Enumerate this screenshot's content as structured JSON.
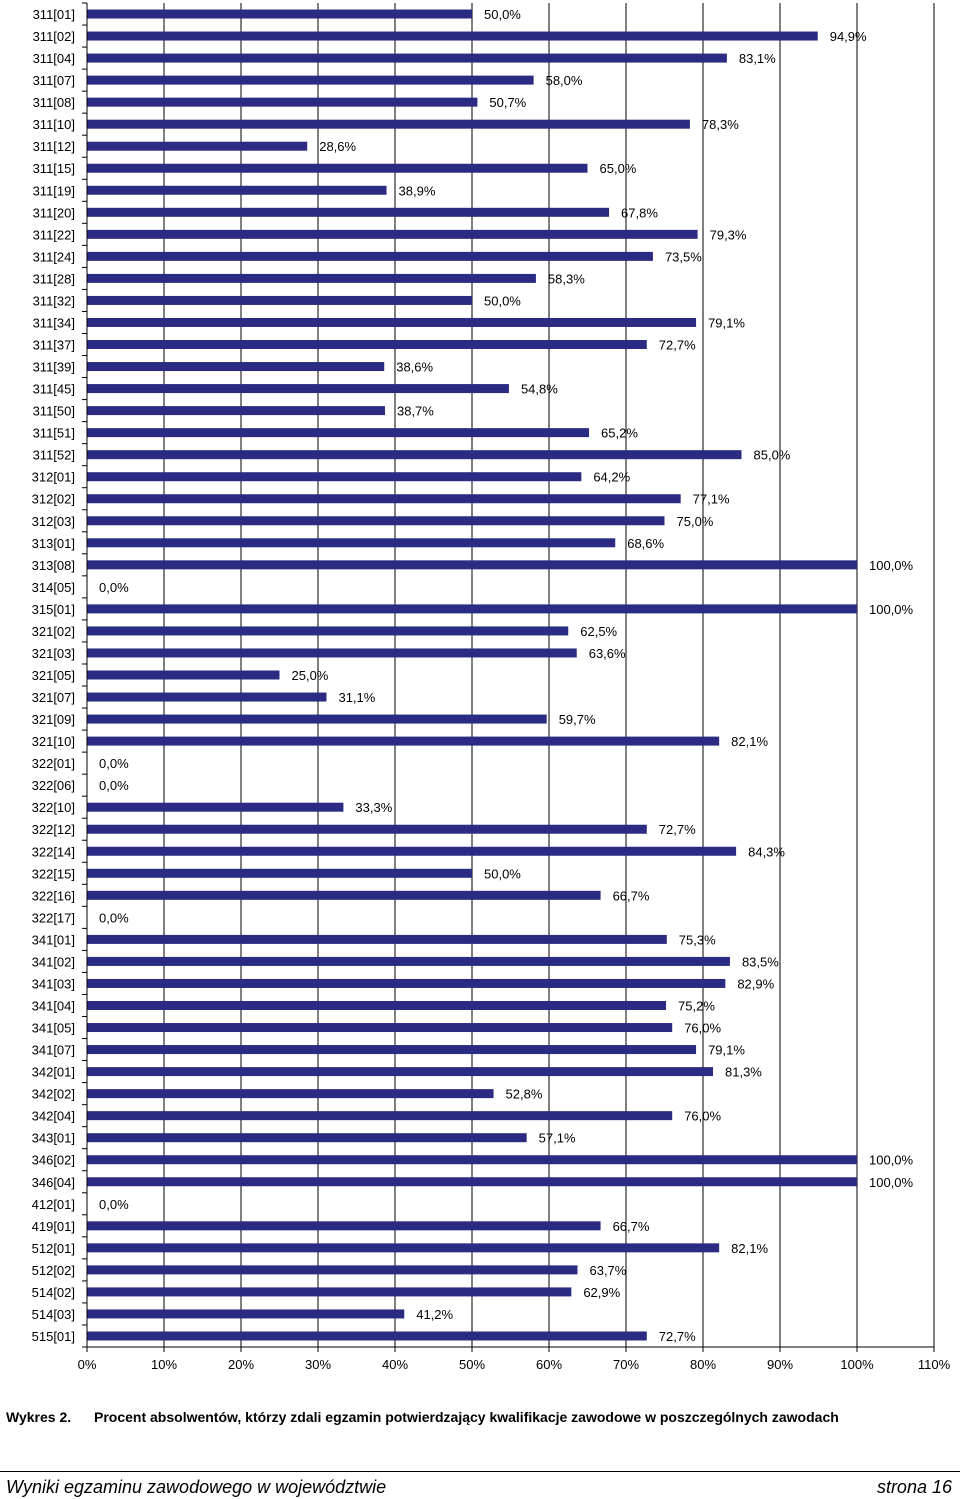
{
  "chart_data": {
    "type": "bar",
    "orientation": "horizontal",
    "categories": [
      "311[01]",
      "311[02]",
      "311[04]",
      "311[07]",
      "311[08]",
      "311[10]",
      "311[12]",
      "311[15]",
      "311[19]",
      "311[20]",
      "311[22]",
      "311[24]",
      "311[28]",
      "311[32]",
      "311[34]",
      "311[37]",
      "311[39]",
      "311[45]",
      "311[50]",
      "311[51]",
      "311[52]",
      "312[01]",
      "312[02]",
      "312[03]",
      "313[01]",
      "313[08]",
      "314[05]",
      "315[01]",
      "321[02]",
      "321[03]",
      "321[05]",
      "321[07]",
      "321[09]",
      "321[10]",
      "322[01]",
      "322[06]",
      "322[10]",
      "322[12]",
      "322[14]",
      "322[15]",
      "322[16]",
      "322[17]",
      "341[01]",
      "341[02]",
      "341[03]",
      "341[04]",
      "341[05]",
      "341[07]",
      "342[01]",
      "342[02]",
      "342[04]",
      "343[01]",
      "346[02]",
      "346[04]",
      "412[01]",
      "419[01]",
      "512[01]",
      "512[02]",
      "514[02]",
      "514[03]",
      "515[01]"
    ],
    "values": [
      50.0,
      94.9,
      83.1,
      58.0,
      50.7,
      78.3,
      28.6,
      65.0,
      38.9,
      67.8,
      79.3,
      73.5,
      58.3,
      50.0,
      79.1,
      72.7,
      38.6,
      54.8,
      38.7,
      65.2,
      85.0,
      64.2,
      77.1,
      75.0,
      68.6,
      100.0,
      0.0,
      100.0,
      62.5,
      63.6,
      25.0,
      31.1,
      59.7,
      82.1,
      0.0,
      0.0,
      33.3,
      72.7,
      84.3,
      50.0,
      66.7,
      0.0,
      75.3,
      83.5,
      82.9,
      75.2,
      76.0,
      79.1,
      81.3,
      52.8,
      76.0,
      57.1,
      100.0,
      100.0,
      0.0,
      66.7,
      82.1,
      63.7,
      62.9,
      41.2,
      72.7
    ],
    "data_labels": [
      "50,0%",
      "94,9%",
      "83,1%",
      "58,0%",
      "50,7%",
      "78,3%",
      "28,6%",
      "65,0%",
      "38,9%",
      "67,8%",
      "79,3%",
      "73,5%",
      "58,3%",
      "50,0%",
      "79,1%",
      "72,7%",
      "38,6%",
      "54,8%",
      "38,7%",
      "65,2%",
      "85,0%",
      "64,2%",
      "77,1%",
      "75,0%",
      "68,6%",
      "100,0%",
      "0,0%",
      "100,0%",
      "62,5%",
      "63,6%",
      "25,0%",
      "31,1%",
      "59,7%",
      "82,1%",
      "0,0%",
      "0,0%",
      "33,3%",
      "72,7%",
      "84,3%",
      "50,0%",
      "66,7%",
      "0,0%",
      "75,3%",
      "83,5%",
      "82,9%",
      "75,2%",
      "76,0%",
      "79,1%",
      "81,3%",
      "52,8%",
      "76,0%",
      "57,1%",
      "100,0%",
      "100,0%",
      "0,0%",
      "66,7%",
      "82,1%",
      "63,7%",
      "62,9%",
      "41,2%",
      "72,7%"
    ],
    "xlim": [
      0,
      110
    ],
    "x_ticks": [
      0,
      10,
      20,
      30,
      40,
      50,
      60,
      70,
      80,
      90,
      100,
      110
    ],
    "x_tick_labels": [
      "0%",
      "10%",
      "20%",
      "30%",
      "40%",
      "50%",
      "60%",
      "70%",
      "80%",
      "90%",
      "100%",
      "110%"
    ],
    "grid": "vertical",
    "bar_color": "#2b2b83",
    "title": "",
    "xlabel": "",
    "ylabel": ""
  },
  "caption": {
    "label": "Wykres 2.",
    "text": "Procent absolwentów, którzy zdali egzamin potwierdzający kwalifikacje zawodowe w poszczególnych zawodach"
  },
  "footer": {
    "left": "Wyniki egzaminu zawodowego w województwie",
    "right": "strona 16"
  }
}
